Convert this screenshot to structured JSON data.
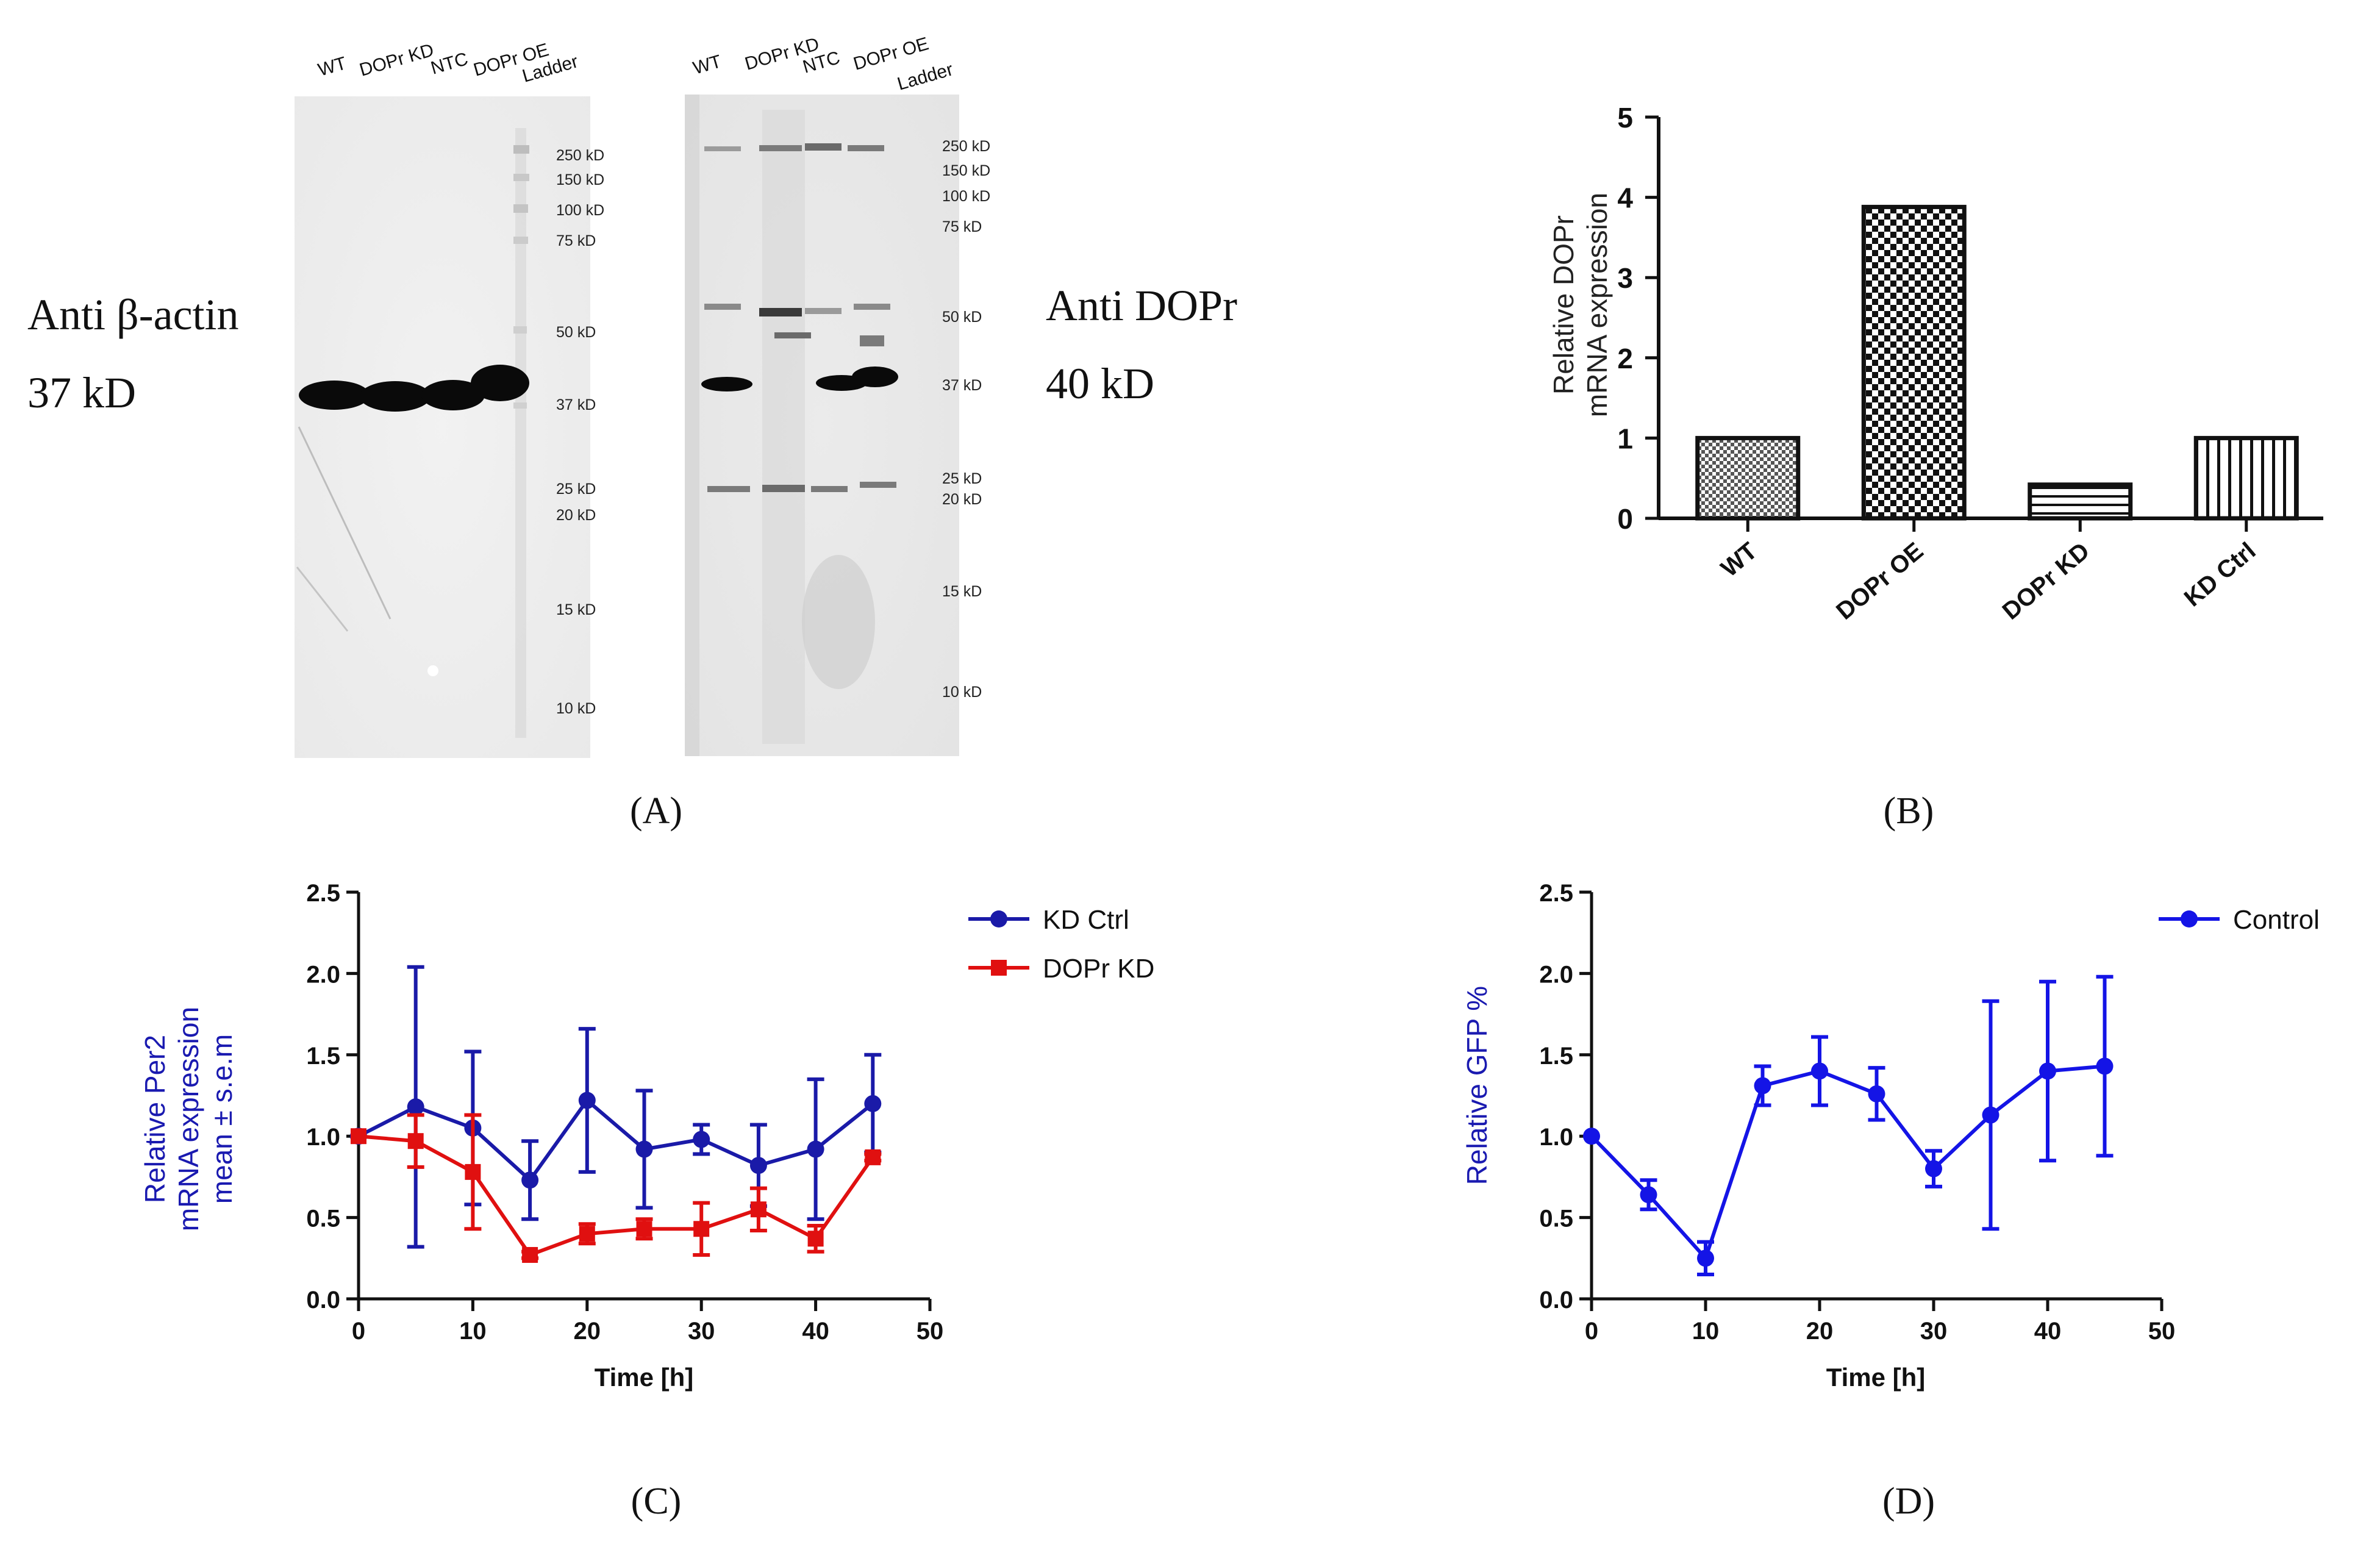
{
  "panel_labels": {
    "A": "(A)",
    "B": "(B)",
    "C": "(C)",
    "D": "(D)"
  },
  "blots": {
    "left": {
      "title_line1": "Anti β-actin",
      "title_line2": "37 kD",
      "lanes": [
        "WT",
        "DOPr KD",
        "NTC",
        "DOPr OE",
        "Ladder"
      ],
      "markers": [
        "250 kD",
        "150 kD",
        "100 kD",
        "75 kD",
        "50 kD",
        "37 kD",
        "25 kD",
        "20 kD",
        "15 kD",
        "10 kD"
      ]
    },
    "right": {
      "title_line1": "Anti DOPr",
      "title_line2": "40 kD",
      "lanes": [
        "WT",
        "DOPr KD",
        "NTC",
        "DOPr OE",
        "Ladder"
      ],
      "markers": [
        "250 kD",
        "150 kD",
        "100 kD",
        "75 kD",
        "50 kD",
        "37 kD",
        "25 kD",
        "20 kD",
        "15 kD",
        "10 kD"
      ]
    }
  },
  "chart_data": [
    {
      "id": "B",
      "type": "bar",
      "categories": [
        "WT",
        "DOPr OE",
        "DOPr KD",
        "KD Ctrl"
      ],
      "values": [
        1.0,
        3.88,
        0.42,
        1.0
      ],
      "title": "",
      "xlabel": "",
      "ylabel_line1": "Relative DOPr",
      "ylabel_line2": "mRNA expression",
      "ylim": [
        0,
        5
      ],
      "yticks": [
        "0",
        "1",
        "2",
        "3",
        "4",
        "5"
      ]
    },
    {
      "id": "C",
      "type": "line",
      "title": "",
      "xlabel": "Time [h]",
      "ylabel_line1": "Relative Per2",
      "ylabel_line2": "mRNA expression",
      "ylabel_line3": "mean ± s.e.m",
      "xlim": [
        0,
        50
      ],
      "ylim": [
        0,
        2.5
      ],
      "xticks": [
        "0",
        "10",
        "20",
        "30",
        "40",
        "50"
      ],
      "yticks": [
        "0.0",
        "0.5",
        "1.0",
        "1.5",
        "2.0",
        "2.5"
      ],
      "x": [
        0,
        5,
        10,
        15,
        20,
        25,
        30,
        35,
        40,
        45
      ],
      "series": [
        {
          "name": "KD Ctrl",
          "color": "#1a1aa8",
          "marker": "circle",
          "values": [
            1.0,
            1.18,
            1.05,
            0.73,
            1.22,
            0.92,
            0.98,
            0.82,
            0.92,
            1.2
          ],
          "err": [
            0.0,
            0.86,
            0.47,
            0.24,
            0.44,
            0.36,
            0.09,
            0.25,
            0.43,
            0.3
          ]
        },
        {
          "name": "DOPr KD",
          "color": "#e01010",
          "marker": "square",
          "values": [
            1.0,
            0.97,
            0.78,
            0.27,
            0.4,
            0.43,
            0.43,
            0.55,
            0.37,
            0.87
          ],
          "err": [
            0.0,
            0.16,
            0.35,
            0.02,
            0.06,
            0.06,
            0.16,
            0.13,
            0.08,
            0.02
          ]
        }
      ]
    },
    {
      "id": "D",
      "type": "line",
      "title": "",
      "xlabel": "Time [h]",
      "ylabel_line1": "Relative GFP %",
      "xlim": [
        0,
        50
      ],
      "ylim": [
        0,
        2.5
      ],
      "xticks": [
        "0",
        "10",
        "20",
        "30",
        "40",
        "50"
      ],
      "yticks": [
        "0.0",
        "0.5",
        "1.0",
        "1.5",
        "2.0",
        "2.5"
      ],
      "x": [
        0,
        5,
        10,
        15,
        20,
        25,
        30,
        35,
        40,
        45
      ],
      "series": [
        {
          "name": "Control",
          "color": "#1414e6",
          "marker": "circle",
          "values": [
            1.0,
            0.64,
            0.25,
            1.31,
            1.4,
            1.26,
            0.8,
            1.13,
            1.4,
            1.43
          ],
          "err": [
            0.0,
            0.09,
            0.1,
            0.12,
            0.21,
            0.16,
            0.11,
            0.7,
            0.55,
            0.55
          ]
        }
      ]
    }
  ]
}
